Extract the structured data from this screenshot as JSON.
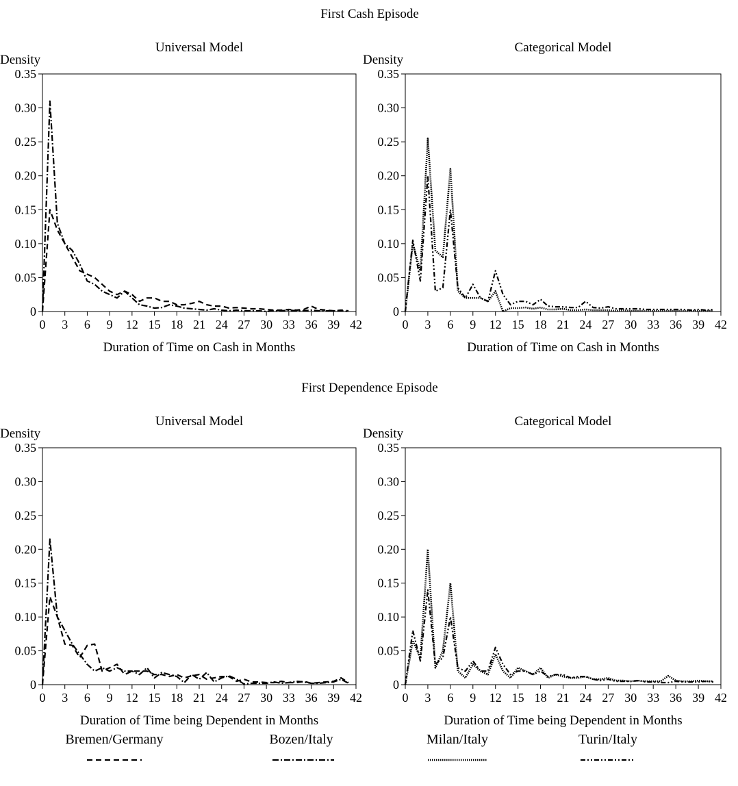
{
  "figure": {
    "section_titles": [
      "First Cash Episode",
      "First Dependence Episode"
    ]
  },
  "legend": {
    "items": [
      {
        "label": "Bremen/Germany",
        "style": "dashed"
      },
      {
        "label": "Bozen/Italy",
        "style": "dashdot"
      },
      {
        "label": "Milan/Italy",
        "style": "dotted-fine"
      },
      {
        "label": "Turin/Italy",
        "style": "dashdotdot"
      }
    ]
  },
  "chart_data": [
    {
      "type": "line",
      "title": "Universal Model",
      "ylabel": "Density",
      "xlabel": "Duration of Time on Cash in Months",
      "xlim": [
        0,
        42
      ],
      "ylim": [
        0,
        0.35
      ],
      "xticks": [
        0,
        3,
        6,
        9,
        12,
        15,
        18,
        21,
        24,
        27,
        30,
        33,
        36,
        39,
        42
      ],
      "yticks": [
        0,
        0.05,
        0.1,
        0.15,
        0.2,
        0.25,
        0.3,
        0.35
      ],
      "ytick_labels": [
        "0",
        "0.05",
        "0.10",
        "0.15",
        "0.20",
        "0.25",
        "0.30",
        "0.35"
      ],
      "series": [
        {
          "name": "Bremen/Germany",
          "style": "dashed",
          "x": [
            0,
            1,
            2,
            3,
            4,
            5,
            6,
            7,
            8,
            9,
            10,
            11,
            12,
            13,
            14,
            15,
            16,
            17,
            18,
            19,
            20,
            21,
            22,
            23,
            24,
            25,
            26,
            27,
            28,
            29,
            30,
            31,
            32,
            33,
            34,
            35,
            36,
            37,
            38,
            39,
            40,
            41
          ],
          "y": [
            0,
            0.15,
            0.12,
            0.1,
            0.08,
            0.06,
            0.055,
            0.05,
            0.04,
            0.03,
            0.025,
            0.03,
            0.025,
            0.015,
            0.02,
            0.02,
            0.015,
            0.015,
            0.01,
            0.01,
            0.012,
            0.015,
            0.01,
            0.008,
            0.008,
            0.005,
            0.006,
            0.005,
            0.004,
            0.004,
            0.003,
            0.002,
            0.002,
            0.003,
            0.002,
            0.003,
            0.008,
            0.003,
            0.002,
            0.001,
            0.002,
            0.001
          ]
        },
        {
          "name": "Bozen/Italy",
          "style": "dashdot",
          "x": [
            0,
            1,
            2,
            3,
            4,
            5,
            6,
            7,
            8,
            9,
            10,
            11,
            12,
            13,
            14,
            15,
            16,
            17,
            18,
            19,
            20,
            21,
            22,
            23,
            24,
            25,
            26,
            27,
            28,
            29,
            30,
            31,
            32,
            33,
            34,
            35,
            36,
            37,
            38,
            39,
            40,
            41
          ],
          "y": [
            0,
            0.31,
            0.13,
            0.1,
            0.09,
            0.07,
            0.045,
            0.04,
            0.03,
            0.025,
            0.02,
            0.03,
            0.02,
            0.01,
            0.008,
            0.005,
            0.006,
            0.01,
            0.008,
            0.005,
            0.004,
            0.003,
            0.002,
            0.004,
            0.002,
            0.001,
            0.002,
            0.001,
            0.001,
            0.001,
            0.0,
            0.001,
            0.001,
            0.002,
            0.001,
            0.001,
            0.002,
            0.001,
            0.001,
            0.001,
            0.001,
            0.0
          ]
        }
      ]
    },
    {
      "type": "line",
      "title": "Categorical Model",
      "ylabel": "Density",
      "xlabel": "Duration of Time on Cash in Months",
      "xlim": [
        0,
        42
      ],
      "ylim": [
        0,
        0.35
      ],
      "xticks": [
        0,
        3,
        6,
        9,
        12,
        15,
        18,
        21,
        24,
        27,
        30,
        33,
        36,
        39,
        42
      ],
      "yticks": [
        0,
        0.05,
        0.1,
        0.15,
        0.2,
        0.25,
        0.3,
        0.35
      ],
      "ytick_labels": [
        "0",
        "0.05",
        "0.10",
        "0.15",
        "0.20",
        "0.25",
        "0.30",
        "0.35"
      ],
      "series": [
        {
          "name": "Milan/Italy",
          "style": "dotted-fine",
          "x": [
            0,
            1,
            2,
            3,
            4,
            5,
            6,
            7,
            8,
            9,
            10,
            11,
            12,
            13,
            14,
            15,
            16,
            17,
            18,
            19,
            20,
            21,
            22,
            23,
            24,
            25,
            26,
            27,
            28,
            29,
            30,
            31,
            32,
            33,
            34,
            35,
            36,
            37,
            38,
            39,
            40,
            41
          ],
          "y": [
            0,
            0.1,
            0.06,
            0.255,
            0.09,
            0.08,
            0.21,
            0.03,
            0.02,
            0.02,
            0.02,
            0.015,
            0.03,
            0.0,
            0.005,
            0.005,
            0.006,
            0.004,
            0.006,
            0.003,
            0.003,
            0.004,
            0.002,
            0.002,
            0.003,
            0.002,
            0.002,
            0.002,
            0.001,
            0.002,
            0.001,
            0.001,
            0.001,
            0.001,
            0.001,
            0.001,
            0.001,
            0.001,
            0.001,
            0.001,
            0.001,
            0.001
          ]
        },
        {
          "name": "Turin/Italy",
          "style": "dashdotdot",
          "x": [
            0,
            1,
            2,
            3,
            4,
            5,
            6,
            7,
            8,
            9,
            10,
            11,
            12,
            13,
            14,
            15,
            16,
            17,
            18,
            19,
            20,
            21,
            22,
            23,
            24,
            25,
            26,
            27,
            28,
            29,
            30,
            31,
            32,
            33,
            34,
            35,
            36,
            37,
            38,
            39,
            40,
            41
          ],
          "y": [
            0,
            0.105,
            0.045,
            0.2,
            0.03,
            0.035,
            0.15,
            0.035,
            0.02,
            0.04,
            0.02,
            0.015,
            0.06,
            0.025,
            0.01,
            0.015,
            0.015,
            0.01,
            0.018,
            0.008,
            0.007,
            0.007,
            0.006,
            0.006,
            0.015,
            0.006,
            0.005,
            0.007,
            0.004,
            0.004,
            0.004,
            0.004,
            0.003,
            0.003,
            0.003,
            0.003,
            0.003,
            0.003,
            0.002,
            0.003,
            0.002,
            0.003
          ]
        }
      ]
    },
    {
      "type": "line",
      "title": "Universal Model",
      "ylabel": "Density",
      "xlabel": "Duration of Time being Dependent in Months",
      "xlim": [
        0,
        42
      ],
      "ylim": [
        0,
        0.35
      ],
      "xticks": [
        0,
        3,
        6,
        9,
        12,
        15,
        18,
        21,
        24,
        27,
        30,
        33,
        36,
        39,
        42
      ],
      "yticks": [
        0,
        0.05,
        0.1,
        0.15,
        0.2,
        0.25,
        0.3,
        0.35
      ],
      "ytick_labels": [
        "0",
        "0.05",
        "0.10",
        "0.15",
        "0.20",
        "0.25",
        "0.30",
        "0.35"
      ],
      "series": [
        {
          "name": "Bremen/Germany",
          "style": "dashed",
          "x": [
            0,
            1,
            2,
            3,
            4,
            5,
            6,
            7,
            8,
            9,
            10,
            11,
            12,
            13,
            14,
            15,
            16,
            17,
            18,
            19,
            20,
            21,
            22,
            23,
            24,
            25,
            26,
            27,
            28,
            29,
            30,
            31,
            32,
            33,
            34,
            35,
            36,
            37,
            38,
            39,
            40,
            41
          ],
          "y": [
            0,
            0.13,
            0.1,
            0.06,
            0.058,
            0.04,
            0.058,
            0.06,
            0.02,
            0.025,
            0.03,
            0.015,
            0.02,
            0.02,
            0.02,
            0.015,
            0.015,
            0.012,
            0.015,
            0.01,
            0.013,
            0.015,
            0.008,
            0.01,
            0.012,
            0.012,
            0.005,
            0.008,
            0.004,
            0.004,
            0.003,
            0.003,
            0.005,
            0.003,
            0.003,
            0.005,
            0.002,
            0.003,
            0.004,
            0.005,
            0.01,
            0.003
          ]
        },
        {
          "name": "Bozen/Italy",
          "style": "dashdot",
          "x": [
            0,
            1,
            2,
            3,
            4,
            5,
            6,
            7,
            8,
            9,
            10,
            11,
            12,
            13,
            14,
            15,
            16,
            17,
            18,
            19,
            20,
            21,
            22,
            23,
            24,
            25,
            26,
            27,
            28,
            29,
            30,
            31,
            32,
            33,
            34,
            35,
            36,
            37,
            38,
            39,
            40,
            41
          ],
          "y": [
            0,
            0.215,
            0.1,
            0.08,
            0.06,
            0.045,
            0.03,
            0.02,
            0.025,
            0.02,
            0.025,
            0.02,
            0.02,
            0.015,
            0.025,
            0.01,
            0.018,
            0.015,
            0.012,
            0.003,
            0.015,
            0.008,
            0.018,
            0.004,
            0.01,
            0.013,
            0.008,
            0.001,
            0.002,
            0.002,
            0.002,
            0.004,
            0.002,
            0.003,
            0.005,
            0.004,
            0.002,
            0.002,
            0.003,
            0.004,
            0.008,
            0.002
          ]
        }
      ]
    },
    {
      "type": "line",
      "title": "Categorical Model",
      "ylabel": "Density",
      "xlabel": "Duration of Time being Dependent in Months",
      "xlim": [
        0,
        42
      ],
      "ylim": [
        0,
        0.35
      ],
      "xticks": [
        0,
        3,
        6,
        9,
        12,
        15,
        18,
        21,
        24,
        27,
        30,
        33,
        36,
        39,
        42
      ],
      "yticks": [
        0,
        0.05,
        0.1,
        0.15,
        0.2,
        0.25,
        0.3,
        0.35
      ],
      "ytick_labels": [
        "0",
        "0.05",
        "0.10",
        "0.15",
        "0.20",
        "0.25",
        "0.30",
        "0.35"
      ],
      "series": [
        {
          "name": "Milan/Italy",
          "style": "dotted-fine",
          "x": [
            0,
            1,
            2,
            3,
            4,
            5,
            6,
            7,
            8,
            9,
            10,
            11,
            12,
            13,
            14,
            15,
            16,
            17,
            18,
            19,
            20,
            21,
            22,
            23,
            24,
            25,
            26,
            27,
            28,
            29,
            30,
            31,
            32,
            33,
            34,
            35,
            36,
            37,
            38,
            39,
            40,
            41
          ],
          "y": [
            0,
            0.065,
            0.04,
            0.2,
            0.025,
            0.05,
            0.15,
            0.02,
            0.01,
            0.03,
            0.02,
            0.015,
            0.045,
            0.02,
            0.01,
            0.025,
            0.02,
            0.015,
            0.025,
            0.01,
            0.015,
            0.012,
            0.01,
            0.01,
            0.012,
            0.008,
            0.008,
            0.01,
            0.006,
            0.006,
            0.005,
            0.006,
            0.005,
            0.005,
            0.005,
            0.013,
            0.006,
            0.005,
            0.005,
            0.006,
            0.005,
            0.005
          ]
        },
        {
          "name": "Turin/Italy",
          "style": "dashdotdot",
          "x": [
            0,
            1,
            2,
            3,
            4,
            5,
            6,
            7,
            8,
            9,
            10,
            11,
            12,
            13,
            14,
            15,
            16,
            17,
            18,
            19,
            20,
            21,
            22,
            23,
            24,
            25,
            26,
            27,
            28,
            29,
            30,
            31,
            32,
            33,
            34,
            35,
            36,
            37,
            38,
            39,
            40,
            41
          ],
          "y": [
            0,
            0.08,
            0.035,
            0.14,
            0.03,
            0.04,
            0.1,
            0.025,
            0.02,
            0.035,
            0.02,
            0.02,
            0.055,
            0.03,
            0.015,
            0.02,
            0.02,
            0.015,
            0.02,
            0.012,
            0.015,
            0.015,
            0.01,
            0.012,
            0.012,
            0.008,
            0.006,
            0.008,
            0.005,
            0.005,
            0.005,
            0.006,
            0.004,
            0.004,
            0.003,
            0.003,
            0.005,
            0.004,
            0.004,
            0.004,
            0.005,
            0.004
          ]
        }
      ]
    }
  ]
}
